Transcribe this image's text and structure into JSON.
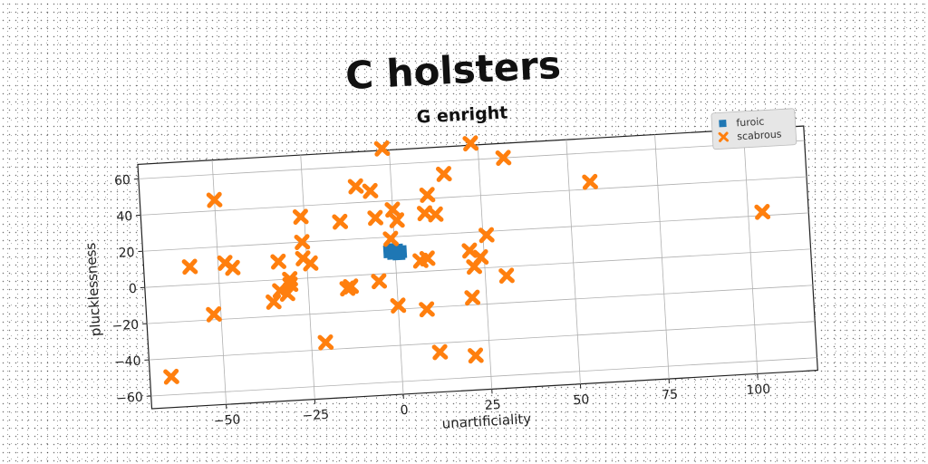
{
  "chart_data": {
    "type": "scatter",
    "title": "C holsters",
    "subtitle": "G enright",
    "xlabel": "unartificiality",
    "ylabel": "pluckl­essness",
    "xlim": [
      -71,
      117
    ],
    "ylim": [
      -67,
      68
    ],
    "xticks": [
      "−50",
      "−25",
      "0",
      "25",
      "50",
      "75",
      "100"
    ],
    "xtick_values": [
      -50,
      -25,
      0,
      25,
      50,
      75,
      100
    ],
    "yticks": [
      "−60",
      "−40",
      "−20",
      "0",
      "20",
      "40",
      "60"
    ],
    "ytick_values": [
      -60,
      -40,
      -20,
      0,
      20,
      40,
      60
    ],
    "grid": true,
    "legend_position": "top-right",
    "series": [
      {
        "name": "furoic",
        "color": "#1f77b4",
        "marker": "square",
        "points": [
          [
            -1.5,
            12
          ],
          [
            -0.5,
            11
          ],
          [
            0.5,
            12.5
          ],
          [
            1.5,
            11.5
          ],
          [
            -1,
            13
          ],
          [
            1,
            10.5
          ],
          [
            0,
            12
          ]
        ]
      },
      {
        "name": "scabrous",
        "color": "#ff7f0e",
        "marker": "x",
        "points": [
          [
            23,
            69
          ],
          [
            32,
            60
          ],
          [
            -2,
            69
          ],
          [
            15,
            53
          ],
          [
            56,
            44
          ],
          [
            -10,
            49
          ],
          [
            -6,
            46
          ],
          [
            -50,
            46
          ],
          [
            10,
            42
          ],
          [
            0,
            35
          ],
          [
            -26,
            34
          ],
          [
            -5,
            31
          ],
          [
            9,
            32
          ],
          [
            12,
            31
          ],
          [
            -15,
            30
          ],
          [
            1,
            29
          ],
          [
            -26,
            20
          ],
          [
            -1,
            19
          ],
          [
            26,
            18
          ],
          [
            -58,
            10
          ],
          [
            -48,
            11
          ],
          [
            -46,
            8
          ],
          [
            -33,
            10
          ],
          [
            -26,
            11
          ],
          [
            -24,
            8
          ],
          [
            7,
            6
          ],
          [
            9,
            7
          ],
          [
            21,
            10
          ],
          [
            24,
            6
          ],
          [
            22,
            1
          ],
          [
            104,
            22
          ],
          [
            -30,
            0
          ],
          [
            -30,
            -3
          ],
          [
            -31,
            -8
          ],
          [
            -33,
            -6
          ],
          [
            -35,
            -12
          ],
          [
            -5,
            -4
          ],
          [
            -14,
            -7
          ],
          [
            -13,
            -6
          ],
          [
            31,
            -5
          ],
          [
            -52,
            -17
          ],
          [
            0,
            -18
          ],
          [
            8,
            -21
          ],
          [
            21,
            -16
          ],
          [
            -21,
            -36
          ],
          [
            11,
            -45
          ],
          [
            21,
            -48
          ],
          [
            -65,
            -50
          ]
        ]
      }
    ]
  }
}
